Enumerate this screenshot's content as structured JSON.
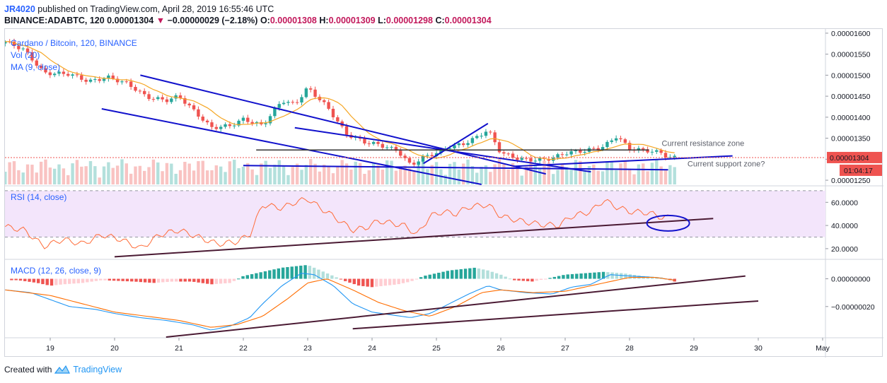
{
  "header": {
    "author": "JR4020",
    "published": "published on TradingView.com, April 28, 2019 16:55:46 UTC",
    "symbol": "BINANCE:ADABTC, 120",
    "last": "0.00001304",
    "change": "−0.00000029 (−2.18%)",
    "o_label": "O:",
    "o": "0.00001308",
    "h_label": "H:",
    "h": "0.00001309",
    "l_label": "L:",
    "l": "0.00001298",
    "c_label": "C:",
    "c": "0.00001304"
  },
  "footer": {
    "created_with": "Created with",
    "brand": "TradingView"
  },
  "colors": {
    "up": "#26a69a",
    "down": "#ef5350",
    "ma": "#f5a623",
    "trend": "#1111cc",
    "rsi": "#ff6d3a",
    "macd": "#2196f3",
    "signal": "#ff6d00",
    "rsi_band": "#f3e5fb",
    "dark_line": "#4a1a33"
  },
  "chart_data": [
    {
      "type": "candlestick",
      "title": "Cardano / Bitcoin, 120, BINANCE",
      "legend": [
        "Vol (20)",
        "MA (9, close)"
      ],
      "x_ticks": [
        "19",
        "20",
        "21",
        "22",
        "23",
        "24",
        "25",
        "26",
        "27",
        "28",
        "29",
        "30",
        "May"
      ],
      "y_ticks": [
        "0.00001600",
        "0.00001550",
        "0.00001500",
        "0.00001450",
        "0.00001400",
        "0.00001350",
        "0.00001300",
        "0.00001250"
      ],
      "ylim": [
        1.24e-05,
        1.61e-05
      ],
      "last_price_label": "0.00001304",
      "countdown_label": "01:04:17",
      "annotations": [
        "Current resistance zone",
        "Current support zone?"
      ],
      "close_path": [
        [
          18.3,
          1.58e-05
        ],
        [
          18.6,
          1.56e-05
        ],
        [
          18.9,
          1.505e-05
        ],
        [
          19.3,
          1.503e-05
        ],
        [
          19.6,
          1.485e-05
        ],
        [
          19.9,
          1.495e-05
        ],
        [
          20.2,
          1.48e-05
        ],
        [
          20.5,
          1.448e-05
        ],
        [
          20.8,
          1.44e-05
        ],
        [
          21.0,
          1.45e-05
        ],
        [
          21.2,
          1.42e-05
        ],
        [
          21.5,
          1.375e-05
        ],
        [
          21.8,
          1.38e-05
        ],
        [
          22.0,
          1.395e-05
        ],
        [
          22.3,
          1.38e-05
        ],
        [
          22.6,
          1.44e-05
        ],
        [
          22.8,
          1.43e-05
        ],
        [
          23.0,
          1.47e-05
        ],
        [
          23.3,
          1.425e-05
        ],
        [
          23.6,
          1.36e-05
        ],
        [
          23.9,
          1.34e-05
        ],
        [
          24.1,
          1.335e-05
        ],
        [
          24.4,
          1.32e-05
        ],
        [
          24.6,
          1.285e-05
        ],
        [
          24.8,
          1.305e-05
        ],
        [
          25.0,
          1.315e-05
        ],
        [
          25.2,
          1.33e-05
        ],
        [
          25.4,
          1.335e-05
        ],
        [
          25.6,
          1.35e-05
        ],
        [
          25.8,
          1.37e-05
        ],
        [
          26.0,
          1.315e-05
        ],
        [
          26.3,
          1.3e-05
        ],
        [
          26.6,
          1.298e-05
        ],
        [
          26.8,
          1.302e-05
        ],
        [
          27.0,
          1.315e-05
        ],
        [
          27.3,
          1.32e-05
        ],
        [
          27.6,
          1.33e-05
        ],
        [
          27.8,
          1.355e-05
        ],
        [
          28.0,
          1.325e-05
        ],
        [
          28.3,
          1.32e-05
        ],
        [
          28.5,
          1.315e-05
        ],
        [
          28.6,
          1.304e-05
        ]
      ]
    },
    {
      "type": "line",
      "title": "RSI (14, close)",
      "y_ticks": [
        "60.0000",
        "40.0000",
        "20.0000"
      ],
      "ylim": [
        12,
        73
      ],
      "bands": [
        70,
        30
      ],
      "series": [
        {
          "values": [
            [
              18.3,
              39
            ],
            [
              18.6,
              36
            ],
            [
              18.9,
              22
            ],
            [
              19.2,
              28
            ],
            [
              19.5,
              24
            ],
            [
              19.8,
              32
            ],
            [
              20.1,
              28
            ],
            [
              20.4,
              20
            ],
            [
              20.7,
              32
            ],
            [
              21.0,
              36
            ],
            [
              21.3,
              30
            ],
            [
              21.6,
              24
            ],
            [
              21.9,
              26
            ],
            [
              22.1,
              32
            ],
            [
              22.3,
              58
            ],
            [
              22.6,
              55
            ],
            [
              22.8,
              60
            ],
            [
              23.0,
              63
            ],
            [
              23.2,
              55
            ],
            [
              23.4,
              48
            ],
            [
              23.7,
              36
            ],
            [
              23.9,
              38
            ],
            [
              24.1,
              44
            ],
            [
              24.3,
              42
            ],
            [
              24.5,
              40
            ],
            [
              24.7,
              32
            ],
            [
              24.9,
              48
            ],
            [
              25.1,
              52
            ],
            [
              25.3,
              50
            ],
            [
              25.5,
              56
            ],
            [
              25.8,
              58
            ],
            [
              26.0,
              48
            ],
            [
              26.3,
              44
            ],
            [
              26.6,
              41
            ],
            [
              26.9,
              40
            ],
            [
              27.1,
              48
            ],
            [
              27.4,
              52
            ],
            [
              27.6,
              62
            ],
            [
              27.8,
              56
            ],
            [
              28.0,
              52
            ],
            [
              28.3,
              51
            ],
            [
              28.5,
              47
            ]
          ]
        }
      ],
      "trendline": [
        [
          20.0,
          13
        ],
        [
          29.3,
          46
        ]
      ]
    },
    {
      "type": "line",
      "title": "MACD (12, 26, close, 9)",
      "y_ticks": [
        "0.00000000",
        "−0.00000020"
      ],
      "ylim": [
        -4.2e-07,
        1.3e-07
      ],
      "series": [
        {
          "values": [
            [
              18.3,
              -8e-08
            ],
            [
              18.7,
              -1e-07
            ],
            [
              19.0,
              -1.5e-07
            ],
            [
              19.3,
              -2e-07
            ],
            [
              19.7,
              -2.2e-07
            ],
            [
              20.0,
              -2.5e-07
            ],
            [
              20.4,
              -2.8e-07
            ],
            [
              20.8,
              -3e-07
            ],
            [
              21.2,
              -3.3e-07
            ],
            [
              21.5,
              -3.7e-07
            ],
            [
              21.8,
              -3.4e-07
            ],
            [
              22.1,
              -2.8e-07
            ],
            [
              22.3,
              -1.8e-07
            ],
            [
              22.6,
              -5e-08
            ],
            [
              22.9,
              4e-08
            ],
            [
              23.1,
              3e-08
            ],
            [
              23.4,
              -5e-08
            ],
            [
              23.7,
              -1.8e-07
            ],
            [
              24.0,
              -2.4e-07
            ],
            [
              24.3,
              -2.6e-07
            ],
            [
              24.6,
              -2.8e-07
            ],
            [
              24.9,
              -2.5e-07
            ],
            [
              25.2,
              -1.8e-07
            ],
            [
              25.5,
              -1.1e-07
            ],
            [
              25.8,
              -5e-08
            ],
            [
              26.0,
              -8e-08
            ],
            [
              26.4,
              -1e-07
            ],
            [
              26.8,
              -1.1e-07
            ],
            [
              27.1,
              -6e-08
            ],
            [
              27.4,
              -4e-08
            ],
            [
              27.7,
              3e-08
            ],
            [
              28.0,
              2e-08
            ],
            [
              28.4,
              1e-08
            ],
            [
              28.7,
              -1e-08
            ]
          ]
        },
        {
          "values": [
            [
              18.3,
              -8e-08
            ],
            [
              19.0,
              -1.2e-07
            ],
            [
              19.5,
              -1.8e-07
            ],
            [
              20.0,
              -2.4e-07
            ],
            [
              20.5,
              -2.7e-07
            ],
            [
              21.0,
              -3e-07
            ],
            [
              21.5,
              -3.5e-07
            ],
            [
              21.9,
              -3.3e-07
            ],
            [
              22.3,
              -2.7e-07
            ],
            [
              22.7,
              -1.4e-07
            ],
            [
              23.0,
              -3e-08
            ],
            [
              23.3,
              0.0
            ],
            [
              23.7,
              -8e-08
            ],
            [
              24.1,
              -1.7e-07
            ],
            [
              24.5,
              -2.3e-07
            ],
            [
              24.9,
              -2.7e-07
            ],
            [
              25.3,
              -2e-07
            ],
            [
              25.7,
              -1e-07
            ],
            [
              26.0,
              -8e-08
            ],
            [
              26.5,
              -1e-07
            ],
            [
              27.0,
              -9e-08
            ],
            [
              27.5,
              -4e-08
            ],
            [
              28.0,
              1e-08
            ],
            [
              28.4,
              1e-08
            ],
            [
              28.7,
              -1e-08
            ]
          ]
        }
      ],
      "histogram": [
        [
          18.5,
          -1e-08
        ],
        [
          18.8,
          -3e-08
        ],
        [
          19.0,
          -5e-08
        ],
        [
          19.2,
          -4e-08
        ],
        [
          19.5,
          -3e-08
        ],
        [
          19.8,
          -1e-08
        ],
        [
          20.3,
          -2e-08
        ],
        [
          20.6,
          -3e-08
        ],
        [
          20.9,
          -2e-08
        ],
        [
          21.2,
          -2e-08
        ],
        [
          21.5,
          -4e-08
        ],
        [
          21.8,
          -3e-08
        ],
        [
          22.0,
          2e-08
        ],
        [
          22.2,
          4e-08
        ],
        [
          22.4,
          6e-08
        ],
        [
          22.6,
          8e-08
        ],
        [
          22.8,
          9e-08
        ],
        [
          23.0,
          1e-07
        ],
        [
          23.2,
          6e-08
        ],
        [
          23.4,
          2e-08
        ],
        [
          23.6,
          -2e-08
        ],
        [
          23.8,
          -5e-08
        ],
        [
          24.0,
          -6e-08
        ],
        [
          24.2,
          -5e-08
        ],
        [
          24.4,
          -4e-08
        ],
        [
          24.6,
          -2e-08
        ],
        [
          24.8,
          2e-08
        ],
        [
          25.0,
          4e-08
        ],
        [
          25.2,
          6e-08
        ],
        [
          25.4,
          7e-08
        ],
        [
          25.6,
          8e-08
        ],
        [
          25.8,
          6e-08
        ],
        [
          26.0,
          3e-08
        ],
        [
          26.2,
          -1e-08
        ],
        [
          26.5,
          -2e-08
        ],
        [
          26.8,
          1e-08
        ],
        [
          27.0,
          3e-08
        ],
        [
          27.3,
          4e-08
        ],
        [
          27.6,
          5e-08
        ],
        [
          27.9,
          4e-08
        ],
        [
          28.2,
          2e-08
        ],
        [
          28.5,
          1e-08
        ],
        [
          28.7,
          -2e-08
        ]
      ]
    }
  ]
}
